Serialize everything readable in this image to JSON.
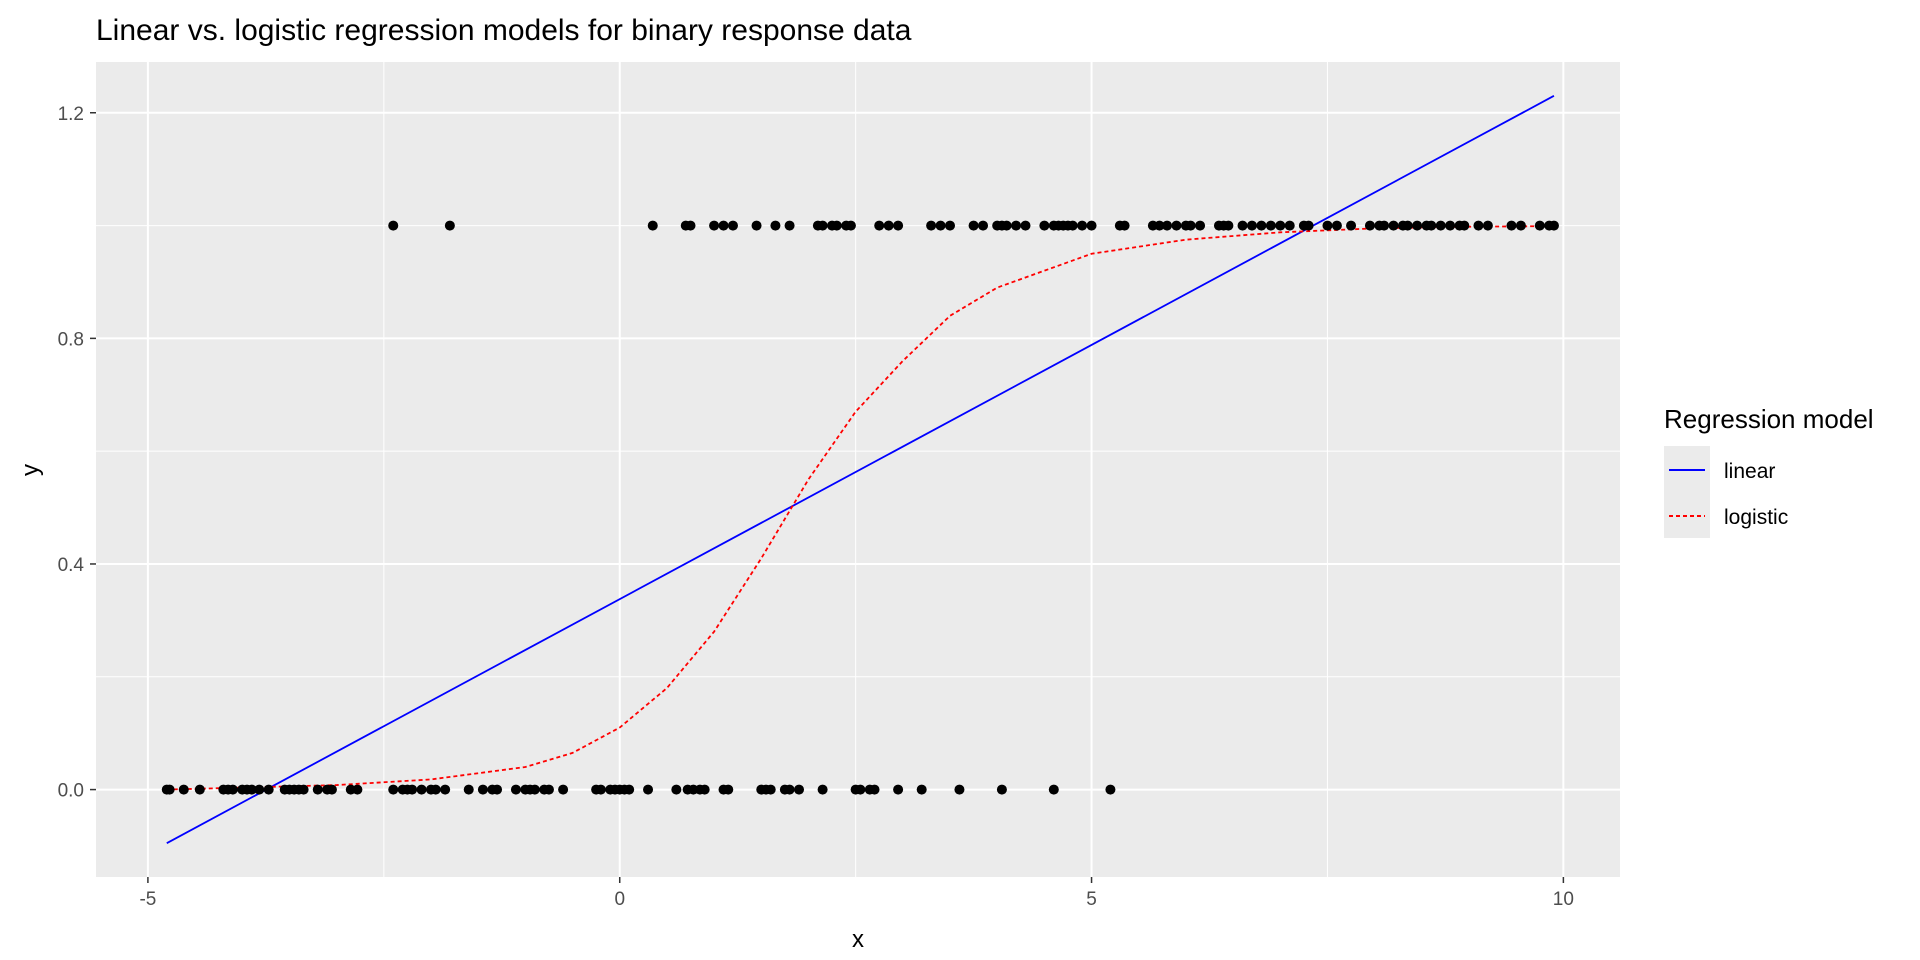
{
  "chart_data": {
    "type": "scatter",
    "title": "Linear vs. logistic regression models for binary response data",
    "xlabel": "x",
    "ylabel": "y",
    "xlim": [
      -5.55,
      10.6
    ],
    "ylim": [
      -0.155,
      1.29
    ],
    "x_ticks": [
      -5,
      0,
      5,
      10
    ],
    "x_tick_labels": [
      "-5",
      "0",
      "5",
      "10"
    ],
    "y_ticks": [
      0.0,
      0.4,
      0.8,
      1.2
    ],
    "y_tick_labels": [
      "0.0",
      "0.4",
      "0.8",
      "1.2"
    ],
    "grid": true,
    "legend": {
      "title": "Regression model",
      "position": "right",
      "entries": [
        {
          "label": "linear",
          "color": "#0000ff",
          "linetype": "solid"
        },
        {
          "label": "logistic",
          "color": "#ff0000",
          "linetype": "dotted"
        }
      ]
    },
    "points_color": "#000000",
    "points": {
      "y0_x": [
        -4.8,
        -4.77,
        -4.62,
        -4.45,
        -4.2,
        -4.15,
        -4.1,
        -4.0,
        -3.95,
        -3.9,
        -3.82,
        -3.72,
        -3.55,
        -3.5,
        -3.45,
        -3.4,
        -3.35,
        -3.2,
        -3.1,
        -3.05,
        -2.85,
        -2.78,
        -2.4,
        -2.3,
        -2.25,
        -2.2,
        -2.1,
        -2.0,
        -1.95,
        -1.85,
        -1.6,
        -1.45,
        -1.35,
        -1.3,
        -1.1,
        -1.0,
        -0.95,
        -0.9,
        -0.8,
        -0.75,
        -0.6,
        -0.25,
        -0.2,
        -0.1,
        -0.05,
        0.0,
        0.05,
        0.1,
        0.3,
        0.6,
        0.72,
        0.78,
        0.85,
        0.9,
        1.1,
        1.15,
        1.5,
        1.55,
        1.6,
        1.75,
        1.8,
        1.9,
        2.15,
        2.5,
        2.55,
        2.65,
        2.7,
        2.95,
        3.2,
        3.6,
        4.05,
        4.6,
        5.2
      ],
      "y1_x": [
        -2.4,
        -1.8,
        0.35,
        0.7,
        0.75,
        1.0,
        1.1,
        1.2,
        1.45,
        1.65,
        1.8,
        2.1,
        2.15,
        2.25,
        2.3,
        2.4,
        2.45,
        2.75,
        2.85,
        2.95,
        3.3,
        3.4,
        3.5,
        3.75,
        3.85,
        4.0,
        4.05,
        4.1,
        4.2,
        4.3,
        4.5,
        4.6,
        4.65,
        4.7,
        4.75,
        4.8,
        4.9,
        5.0,
        5.3,
        5.35,
        5.65,
        5.72,
        5.8,
        5.9,
        6.0,
        6.05,
        6.15,
        6.35,
        6.4,
        6.45,
        6.6,
        6.7,
        6.8,
        6.9,
        7.0,
        7.1,
        7.25,
        7.3,
        7.5,
        7.6,
        7.75,
        7.95,
        8.05,
        8.1,
        8.2,
        8.3,
        8.35,
        8.45,
        8.55,
        8.6,
        8.7,
        8.8,
        8.9,
        8.95,
        9.1,
        9.2,
        9.45,
        9.55,
        9.75,
        9.85,
        9.9
      ]
    },
    "series": [
      {
        "name": "linear",
        "x": [
          -4.8,
          9.9
        ],
        "y": [
          -0.095,
          1.23
        ]
      },
      {
        "name": "logistic",
        "x": [
          -4.8,
          -3.0,
          -2.0,
          -1.0,
          -0.5,
          0.0,
          0.5,
          1.0,
          1.5,
          2.0,
          2.5,
          3.0,
          3.5,
          4.0,
          5.0,
          6.0,
          7.0,
          8.0,
          9.0,
          9.9
        ],
        "y": [
          0.0,
          0.008,
          0.018,
          0.04,
          0.065,
          0.11,
          0.18,
          0.28,
          0.41,
          0.55,
          0.67,
          0.76,
          0.84,
          0.89,
          0.95,
          0.975,
          0.988,
          0.995,
          0.998,
          0.999
        ]
      }
    ]
  }
}
